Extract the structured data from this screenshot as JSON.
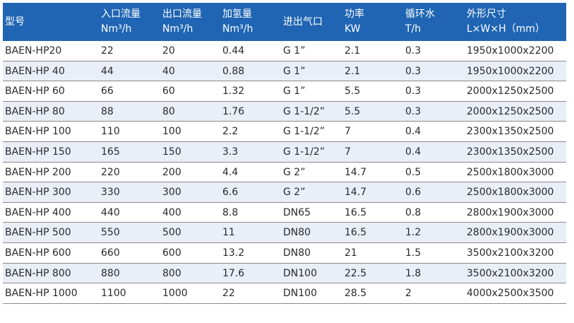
{
  "headers": [
    {
      "line1": "型号",
      "line2": ""
    },
    {
      "line1": "入口流量",
      "line2": "Nm³/h"
    },
    {
      "line1": "出口流量",
      "line2": "Nm³/h"
    },
    {
      "line1": "加氢量",
      "line2": "Nm³/h"
    },
    {
      "line1": "进出气口",
      "line2": ""
    },
    {
      "line1": "功率",
      "line2": "KW"
    },
    {
      "line1": "循环水",
      "line2": "T/h"
    },
    {
      "line1": "外形尺寸",
      "line2": "L×W×H（mm）"
    }
  ],
  "rows": [
    [
      "BAEN-HP20",
      "22",
      "20",
      "0.44",
      "G 1”",
      "2.1",
      "0.3",
      "1950x1000x2200"
    ],
    [
      "BAEN-HP 40",
      "44",
      "40",
      "0.88",
      "G 1”",
      "2.1",
      "0.3",
      "1950x1000x2200"
    ],
    [
      "BAEN-HP 60",
      "66",
      "60",
      "1.32",
      "G 1”",
      "5.5",
      "0.3",
      "2000x1250x2500"
    ],
    [
      "BAEN-HP 80",
      "88",
      "80",
      "1.76",
      "G 1-1/2”",
      "5.5",
      "0.3",
      "2000x1250x2500"
    ],
    [
      "BAEN-HP 100",
      "110",
      "100",
      "2.2",
      "G 1-1/2”",
      "7",
      "0.4",
      "2300x1350x2500"
    ],
    [
      "BAEN-HP 150",
      "165",
      "150",
      "3.3",
      "G 1-1/2”",
      "7",
      "0.4",
      "2300x1350x2500"
    ],
    [
      "BAEN-HP 200",
      "220",
      "200",
      "4.4",
      "G 2”",
      "14.7",
      "0.5",
      "2500x1800x3000"
    ],
    [
      "BAEN-HP 300",
      "330",
      "300",
      "6.6",
      "G 2”",
      "14.7",
      "0.6",
      "2500x1800x3000"
    ],
    [
      "BAEN-HP 400",
      "440",
      "400",
      "8.8",
      "DN65",
      "16.5",
      "0.8",
      "2800x1900x3000"
    ],
    [
      "BAEN-HP 500",
      "550",
      "500",
      "11",
      "DN80",
      "16.5",
      "1.2",
      "2800x1900x3000"
    ],
    [
      "BAEN-HP 600",
      "660",
      "600",
      "13.2",
      "DN80",
      "21",
      "1.5",
      "3500x2100x3200"
    ],
    [
      "BAEN-HP 800",
      "880",
      "800",
      "17.6",
      "DN100",
      "22.5",
      "1.8",
      "3500x2100x3200"
    ],
    [
      "BAEN-HP 1000",
      "1100",
      "1000",
      "22",
      "DN100",
      "28.5",
      "2",
      "4000x2500x3500"
    ]
  ]
}
